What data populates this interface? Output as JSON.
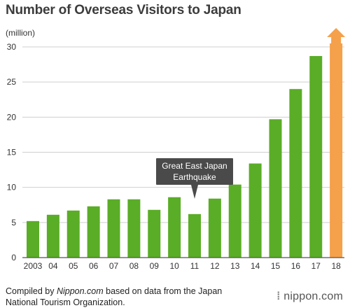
{
  "title": "Number of Overseas Visitors to Japan",
  "unit_label": "(million)",
  "footer": {
    "prefix": "Compiled by ",
    "source_name": "Nippon.com",
    "suffix": " based on data from the Japan",
    "line2": "National Tourism Organization."
  },
  "logo_text": "nippon.com",
  "colors": {
    "bar": "#5aad26",
    "highlight_bar": "#f5a04a",
    "annotation_bg": "#4a4a4a",
    "grid": "#cfcfcf",
    "axis": "#555555"
  },
  "chart_data": {
    "type": "bar",
    "title": "Number of Overseas Visitors to Japan",
    "ylabel": "(million)",
    "xlabel": "",
    "categories": [
      "2003",
      "04",
      "05",
      "06",
      "07",
      "08",
      "09",
      "10",
      "11",
      "12",
      "13",
      "14",
      "15",
      "16",
      "17",
      "18"
    ],
    "values": [
      5.2,
      6.1,
      6.7,
      7.3,
      8.3,
      8.3,
      6.8,
      8.6,
      6.2,
      8.4,
      10.4,
      13.4,
      19.7,
      24.0,
      28.7,
      30.0
    ],
    "highlight_category": "18",
    "highlight_extends_beyond_axis": true,
    "ylim": [
      0,
      30
    ],
    "yticks": [
      0,
      5,
      10,
      15,
      20,
      25,
      30
    ],
    "grid": true,
    "annotation": {
      "category": "11",
      "line1": "Great East Japan",
      "line2": "Earthquake"
    }
  }
}
